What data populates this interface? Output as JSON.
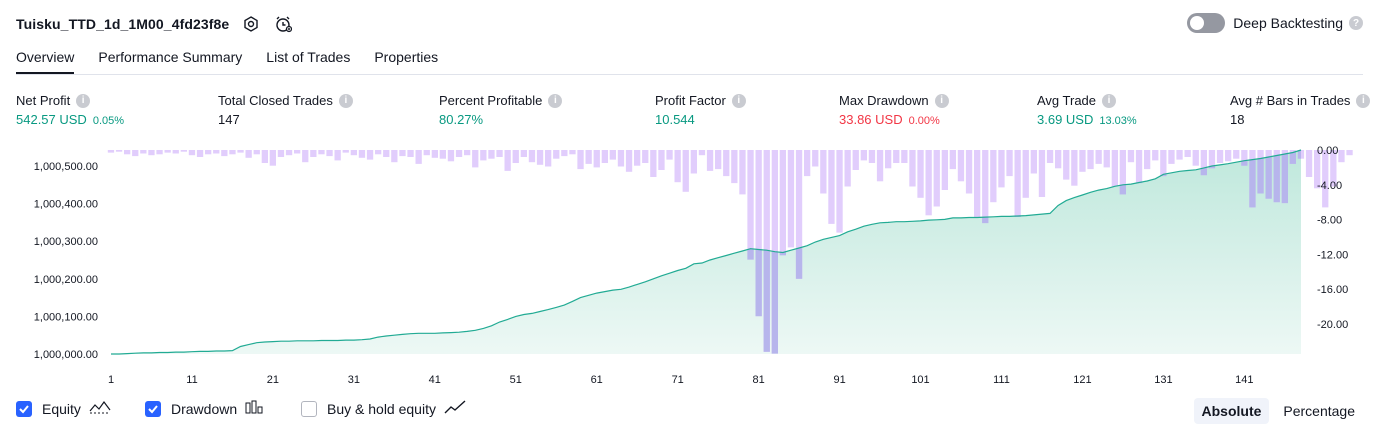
{
  "header": {
    "strategy_name": "Tuisku_TTD_1d_1M00_4fd23f8e",
    "settings_icon": "gear-icon",
    "alert_icon": "alarm-clock-icon",
    "deep_backtesting_label": "Deep Backtesting",
    "deep_backtesting_enabled": false
  },
  "tabs": [
    {
      "label": "Overview",
      "active": true
    },
    {
      "label": "Performance Summary",
      "active": false
    },
    {
      "label": "List of Trades",
      "active": false
    },
    {
      "label": "Properties",
      "active": false
    }
  ],
  "metrics": {
    "net_profit": {
      "label": "Net Profit",
      "value": "542.57 USD",
      "sub": "0.05%"
    },
    "total_closed_trades": {
      "label": "Total Closed Trades",
      "value": "147"
    },
    "percent_profitable": {
      "label": "Percent Profitable",
      "value": "80.27%"
    },
    "profit_factor": {
      "label": "Profit Factor",
      "value": "10.544"
    },
    "max_drawdown": {
      "label": "Max Drawdown",
      "value": "33.86 USD",
      "sub": "0.00%"
    },
    "avg_trade": {
      "label": "Avg Trade",
      "value": "3.69 USD",
      "sub": "13.03%"
    },
    "avg_bars": {
      "label": "Avg # Bars in Trades",
      "value": "18"
    }
  },
  "chart_data": {
    "type": "area",
    "x_ticks": [
      "1",
      "11",
      "21",
      "31",
      "41",
      "51",
      "61",
      "71",
      "81",
      "91",
      "101",
      "111",
      "121",
      "131",
      "141"
    ],
    "y_left_ticks": [
      "1,000,000.00",
      "1,000,100.00",
      "1,000,200.00",
      "1,000,300.00",
      "1,000,400.00",
      "1,000,500.00"
    ],
    "y_right_ticks": [
      "0.00",
      "-4.00",
      "-8.00",
      "-12.00",
      "-16.00",
      "-20.00"
    ],
    "ylim_left": [
      1000000,
      1000542.57
    ],
    "ylim_right": [
      -23.5,
      0
    ],
    "x_range": [
      1,
      148
    ],
    "colors": {
      "equity_line": "#22ab94",
      "equity_fill": "#d2efe8",
      "drawdown_bar": "#dcc4fb",
      "drawdown_overlap": "#b7b5ec"
    },
    "series": [
      {
        "name": "Equity",
        "values": [
          1000000,
          1000000,
          1000001,
          1000002,
          1000003,
          1000003,
          1000004,
          1000004,
          1000005,
          1000005,
          1000006,
          1000007,
          1000007,
          1000008,
          1000008,
          1000009,
          1000020,
          1000025,
          1000030,
          1000032,
          1000033,
          1000034,
          1000034,
          1000035,
          1000035,
          1000035,
          1000036,
          1000036,
          1000036,
          1000037,
          1000037,
          1000038,
          1000040,
          1000045,
          1000048,
          1000050,
          1000052,
          1000054,
          1000055,
          1000055,
          1000055,
          1000056,
          1000057,
          1000058,
          1000060,
          1000063,
          1000068,
          1000075,
          1000085,
          1000092,
          1000100,
          1000105,
          1000108,
          1000113,
          1000118,
          1000124,
          1000130,
          1000140,
          1000150,
          1000156,
          1000162,
          1000166,
          1000170,
          1000172,
          1000178,
          1000185,
          1000192,
          1000200,
          1000208,
          1000215,
          1000222,
          1000228,
          1000240,
          1000242,
          1000250,
          1000256,
          1000262,
          1000268,
          1000274,
          1000280,
          1000278,
          1000276,
          1000272,
          1000270,
          1000276,
          1000282,
          1000288,
          1000298,
          1000305,
          1000310,
          1000315,
          1000325,
          1000332,
          1000340,
          1000345,
          1000349,
          1000350,
          1000352,
          1000352,
          1000353,
          1000354,
          1000356,
          1000357,
          1000358,
          1000362,
          1000362,
          1000363,
          1000363,
          1000364,
          1000365,
          1000366,
          1000366,
          1000367,
          1000368,
          1000370,
          1000372,
          1000374,
          1000395,
          1000408,
          1000416,
          1000423,
          1000430,
          1000436,
          1000440,
          1000446,
          1000450,
          1000452,
          1000456,
          1000460,
          1000466,
          1000478,
          1000482,
          1000486,
          1000488,
          1000490,
          1000495,
          1000500,
          1000503,
          1000506,
          1000510,
          1000514,
          1000517,
          1000520,
          1000524,
          1000528,
          1000532,
          1000536,
          1000542.57
        ]
      },
      {
        "name": "Drawdown",
        "values": [
          -0.3,
          -0.2,
          -0.5,
          -0.7,
          -0.4,
          -0.6,
          -0.5,
          -0.3,
          -0.4,
          -0.2,
          -0.6,
          -0.8,
          -0.5,
          -0.4,
          -0.7,
          -0.5,
          -0.3,
          -0.9,
          -0.5,
          -1.5,
          -1.8,
          -0.8,
          -0.6,
          -0.4,
          -1.4,
          -0.8,
          -0.5,
          -0.7,
          -1.2,
          -0.3,
          -0.6,
          -0.9,
          -1.1,
          -0.5,
          -0.8,
          -1.4,
          -0.7,
          -0.8,
          -1.6,
          -0.6,
          -0.9,
          -1.0,
          -1.3,
          -0.8,
          -0.6,
          -2.0,
          -1.2,
          -1.0,
          -0.8,
          -2.4,
          -1.5,
          -0.8,
          -1.4,
          -1.7,
          -1.9,
          -1.0,
          -0.7,
          -0.5,
          -2.2,
          -1.6,
          -2.0,
          -1.5,
          -1.1,
          -1.9,
          -2.5,
          -1.8,
          -1.5,
          -3.1,
          -2.3,
          -1.1,
          -3.7,
          -4.8,
          -2.7,
          -0.6,
          -2.4,
          -2.2,
          -3.0,
          -3.8,
          -5.1,
          -12.6,
          -19.1,
          -23.2,
          -23.4,
          -12.1,
          -11.2,
          -14.8,
          -3.0,
          -1.9,
          -5.0,
          -8.5,
          -9.5,
          -4.2,
          -2.3,
          -1.2,
          -1.5,
          -3.6,
          -2.1,
          -1.5,
          -1.5,
          -4.2,
          -5.5,
          -7.5,
          -6.5,
          -4.6,
          -2.2,
          -3.6,
          -5.0,
          -7.8,
          -8.4,
          -6.0,
          -4.3,
          -3.0,
          -7.7,
          -5.5,
          -2.7,
          -5.4,
          -1.5,
          -2.1,
          -3.4,
          -4.1,
          -2.5,
          -2.2,
          -1.6,
          -2.0,
          -4.2,
          -5.1,
          -1.4,
          -3.8,
          -2.2,
          -1.2,
          -3.0,
          -1.6,
          -1.1,
          -0.8,
          -1.8,
          -2.9,
          -2.1,
          -1.5,
          -1.3,
          -1.0,
          -1.8,
          -6.6,
          -5.0,
          -5.6,
          -6.0,
          -6.1,
          -1.6,
          -1.0,
          -3.1,
          -4.4,
          -6.6,
          -4.2,
          -1.4,
          -0.6
        ]
      }
    ]
  },
  "legend": [
    {
      "label": "Equity",
      "checked": true,
      "icon": "equity-line-icon"
    },
    {
      "label": "Drawdown",
      "checked": true,
      "icon": "drawdown-bars-icon"
    },
    {
      "label": "Buy & hold equity",
      "checked": false,
      "icon": "trend-line-icon"
    }
  ],
  "scale": {
    "absolute": "Absolute",
    "percentage": "Percentage",
    "selected": "Absolute"
  }
}
